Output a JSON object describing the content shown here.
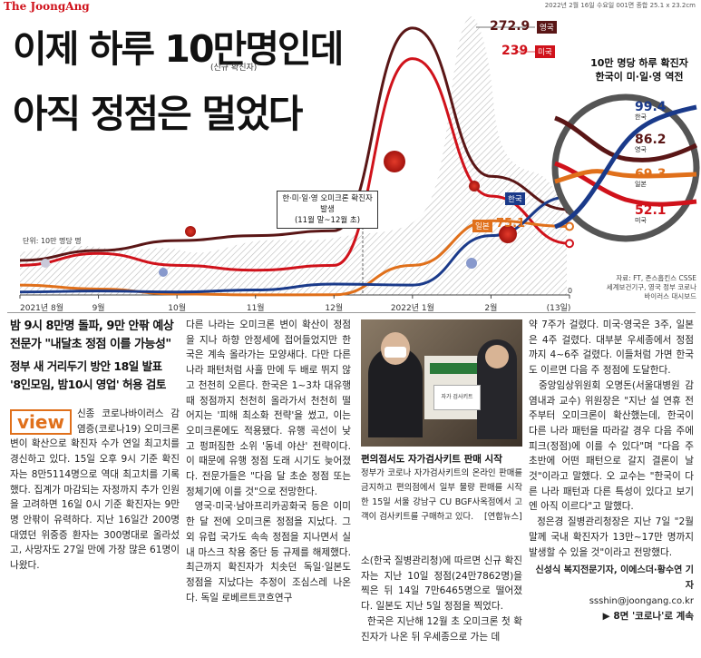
{
  "masthead": "The JoongAng",
  "dateline": "2022년 2월 16일 수요일 001면 종합 25.1 x 23.2cm",
  "headline": {
    "line1": "이제 하루 10만명인데",
    "line2": "아직 정점은 멀었다",
    "tag": "(신규 확진자)"
  },
  "chart": {
    "unit_label": "단위: 10만 명당 명",
    "annotation_line1": "한·미·일·영 오미크론 확진자 발생",
    "annotation_line2": "(11월 말~12월 초)",
    "peak_uk_value": "272.9",
    "peak_uk_label": "영국",
    "peak_us_value": "239",
    "peak_us_label": "미국",
    "jp_label": "일본",
    "jp_value": "75.1",
    "kr_label": "한국",
    "zero_label": "0",
    "panel_title": "10만 명당 하루 확진자\n한국이 미·일·영 역전",
    "panel": [
      {
        "value": "99.4",
        "label": "한국",
        "color": "#1a3a8a"
      },
      {
        "value": "86.2",
        "label": "영국",
        "color": "#5a1616"
      },
      {
        "value": "69.3",
        "label": "일본",
        "color": "#e0701b"
      },
      {
        "value": "52.1",
        "label": "미국",
        "color": "#d0121b"
      }
    ],
    "source": "자료: FT, 존스홉킨스 CSSE\n세계보건기구, 영국 정부 코로나\n바이러스 대시보드",
    "x_ticks": [
      "2021년 8월",
      "9월",
      "10월",
      "11월",
      "12월",
      "2022년 1월",
      "2월",
      "(13일)"
    ]
  },
  "chart_data": {
    "type": "line",
    "title": "10만 명당 하루 확진자",
    "ylabel": "단위: 10만 명당 명",
    "x": [
      "2021년 8월",
      "9월",
      "10월",
      "11월",
      "12월",
      "2022년 1월",
      "2월",
      "(13일)"
    ],
    "series": [
      {
        "name": "영국",
        "color": "#5a1616",
        "values": [
          35,
          45,
          55,
          60,
          65,
          270,
          120,
          86.2
        ],
        "peak": 272.9
      },
      {
        "name": "미국",
        "color": "#d0121b",
        "values": [
          30,
          42,
          30,
          25,
          30,
          239,
          100,
          52.1
        ],
        "peak": 239
      },
      {
        "name": "일본",
        "color": "#e0701b",
        "values": [
          10,
          6,
          1,
          0.1,
          0.2,
          30,
          75.1,
          69.3
        ]
      },
      {
        "name": "한국",
        "color": "#1a3a8a",
        "values": [
          3,
          4,
          3,
          5,
          11,
          10,
          60,
          99.4
        ]
      }
    ]
  },
  "article": {
    "deck1": "밤 9시 8만명 돌파, 9만 안팎 예상\n전문가 \"내달초 정점 이를 가능성\"",
    "deck2": "정부 새 거리두기 방안 18일 발표\n'8인모임, 밤10시 영업' 허용 검토",
    "view_badge": "view",
    "col1_body": "신종 코로나바이러스 감염증(코로나19) 오미크론 변이 확산으로 확진자 수가 연일 최고치를 경신하고 있다. 15일 오후 9시 기준 확진자는 8만5114명으로 역대 최고치를 기록했다. 집계가 마감되는 자정까지 추가 인원을 고려하면 16일 0시 기준 확진자는 9만 명 안팎이 유력하다. 지난 16일간 200명대였던 위중증 환자는 300명대로 올라섰고, 사망자도 27일 만에 가장 많은 61명이 나왔다.",
    "col2_body": "다른 나라는 오미크론 변이 확산이 정점을 지나 하향 안정세에 접어들었지만 한국은 계속 올라가는 모양새다. 다만 다른 나라 패턴처럼 사흘 만에 두 배로 뛰지 않고 천천히 오른다. 한국은 1~3차 대유행 때 정점까지 천천히 올라가서 천천히 떨어지는 '피해 최소화 전략'을 썼고, 이는 오미크론에도 적용됐다. 유행 곡선이 낮고 펑퍼짐한 소위 '동네 야산' 전략이다. 이 때문에 유행 정점 도래 시기도 늦어졌다. 전문가들은 \"다음 달 초순 정점 또는 정체기에 이를 것\"으로 전망한다.\n  영국·미국·남아프리카공화국 등은 이미 한 달 전에 오미크론 정점을 지났다. 그 외 유럽 국가도 속속 정점을 지나면서 실내 마스크 착용 중단 등 규제를 해제했다. 최근까지 확진자가 치솟던 독일·일본도 정점을 지났다는 추정이 조심스레 나온다. 독일 로베르트코흐연구",
    "photo_caption_title": "편의점서도 자가검사키트 판매 시작",
    "photo_caption": "정부가 코로나 자가검사키트의 온라인 판매를 금지하고 편의점에서 일부 물량 판매를 시작한 15일 서울 강남구 CU BGF사옥점에서 고객이 검사키트를 구매하고 있다.    [연합뉴스]",
    "photo_sign": "자가 검사키트",
    "col3_body": "소(한국 질병관리청)에 따르면 신규 확진자는 지난 10일 정점(24만7862명)을 찍은 뒤 14일 7만6465명으로 떨어졌다. 일본도 지난 5일 정점을 찍었다.\n  한국은 지난해 12월 초 오미크론 첫 확진자가 나온 뒤 우세종으로 가는 데",
    "col4_body": "약 7주가 걸렸다. 미국·영국은 3주, 일본은 4주 걸렸다. 대부분 우세종에서 정점까지 4~6주 걸렸다. 이들처럼 가면 한국도 이르면 다음 주 정점에 도달한다.\n  중앙임상위원회 오명돈(서울대병원 감염내과 교수) 위원장은 \"지난 설 연휴 전 주부터 오미크론이 확산했는데, 한국이 다른 나라 패턴을 따라갈 경우 다음 주에 피크(정점)에 이를 수 있다\"며 \"다음 주 초반에 어떤 패턴으로 갈지 결론이 날 것\"이라고 말했다. 오 교수는 \"한국이 다른 나라 패턴과 다른 특성이 있다고 보기엔 아직 이르다\"고 말했다.\n  정은경 질병관리청장은 지난 7일 \"2월 말께 국내 확진자가 13만~17만 명까지 발생할 수 있을 것\"이라고 전망했다.",
    "byline": "신성식 복지전문기자, 이에스더·황수연 기자",
    "email": "ssshin@joongang.co.kr",
    "continued": "▶ 8면 '코로나'로 계속"
  }
}
